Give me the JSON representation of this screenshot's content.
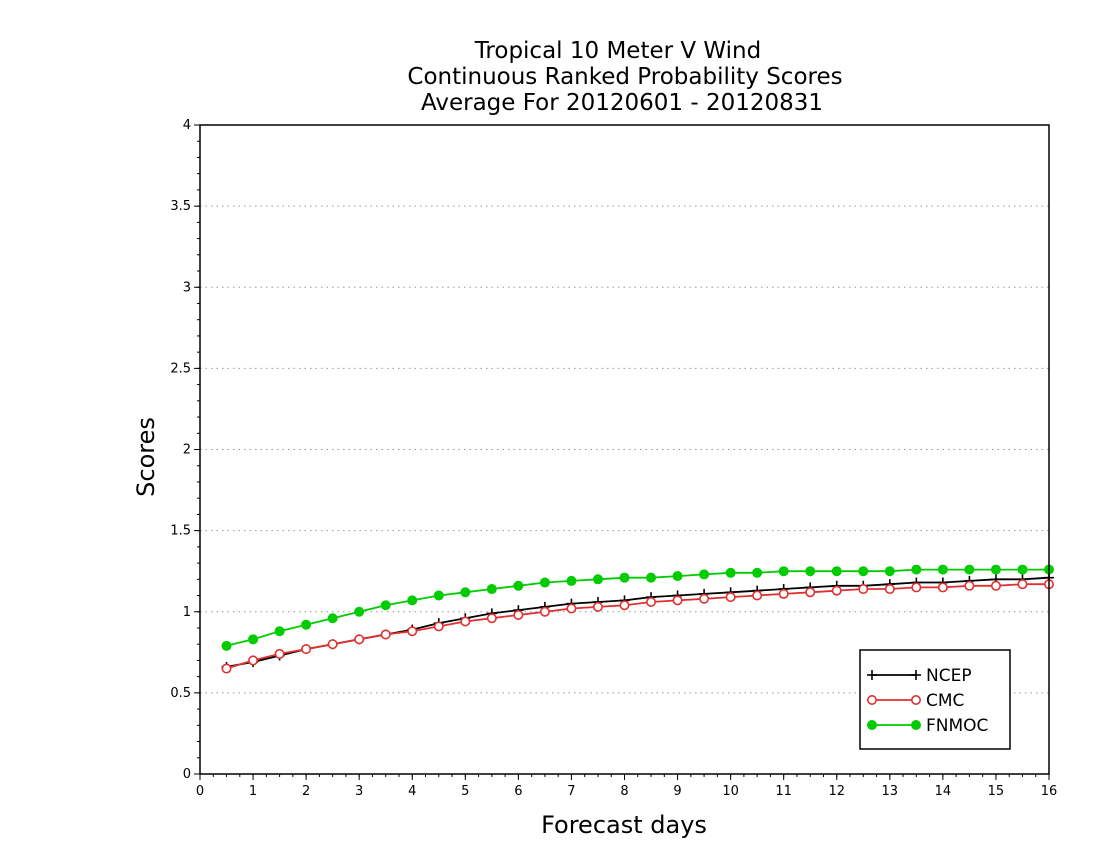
{
  "chart_data": {
    "type": "line",
    "title": [
      "Tropical 10 Meter V Wind",
      "Continuous Ranked Probability Scores",
      "Average For 20120601 - 20120831"
    ],
    "xlabel": "Forecast days",
    "ylabel": "Scores",
    "xlim": [
      0,
      16
    ],
    "ylim": [
      0,
      4
    ],
    "xticks": [
      0,
      1,
      2,
      3,
      4,
      5,
      6,
      7,
      8,
      9,
      10,
      11,
      12,
      13,
      14,
      15,
      16
    ],
    "yticks": [
      0,
      0.5,
      1,
      1.5,
      2,
      2.5,
      3,
      3.5,
      4
    ],
    "ytick_labels": [
      "0",
      "0.5",
      "1",
      "1.5",
      "2",
      "2.5",
      "3",
      "3.5",
      "4"
    ],
    "grid": "horizontal-dotted",
    "legend_position": "bottom-right",
    "x": [
      0.5,
      1,
      1.5,
      2,
      2.5,
      3,
      3.5,
      4,
      4.5,
      5,
      5.5,
      6,
      6.5,
      7,
      7.5,
      8,
      8.5,
      9,
      9.5,
      10,
      10.5,
      11,
      11.5,
      12,
      12.5,
      13,
      13.5,
      14,
      14.5,
      15,
      15.5,
      16
    ],
    "series": [
      {
        "name": "NCEP",
        "color": "#000000",
        "marker": "plus",
        "values": [
          0.66,
          0.69,
          0.73,
          0.77,
          0.8,
          0.83,
          0.86,
          0.89,
          0.93,
          0.96,
          0.99,
          1.01,
          1.03,
          1.05,
          1.06,
          1.07,
          1.09,
          1.1,
          1.11,
          1.12,
          1.13,
          1.14,
          1.15,
          1.16,
          1.16,
          1.17,
          1.18,
          1.18,
          1.19,
          1.2,
          1.2,
          1.21
        ]
      },
      {
        "name": "CMC",
        "color": "#e03030",
        "marker": "open-circle",
        "values": [
          0.65,
          0.7,
          0.74,
          0.77,
          0.8,
          0.83,
          0.86,
          0.88,
          0.91,
          0.94,
          0.96,
          0.98,
          1.0,
          1.02,
          1.03,
          1.04,
          1.06,
          1.07,
          1.08,
          1.09,
          1.1,
          1.11,
          1.12,
          1.13,
          1.14,
          1.14,
          1.15,
          1.15,
          1.16,
          1.16,
          1.17,
          1.17
        ]
      },
      {
        "name": "FNMOC",
        "color": "#00cc00",
        "marker": "filled-circle",
        "values": [
          0.79,
          0.83,
          0.88,
          0.92,
          0.96,
          1.0,
          1.04,
          1.07,
          1.1,
          1.12,
          1.14,
          1.16,
          1.18,
          1.19,
          1.2,
          1.21,
          1.21,
          1.22,
          1.23,
          1.24,
          1.24,
          1.25,
          1.25,
          1.25,
          1.25,
          1.25,
          1.26,
          1.26,
          1.26,
          1.26,
          1.26,
          1.26
        ]
      }
    ]
  }
}
